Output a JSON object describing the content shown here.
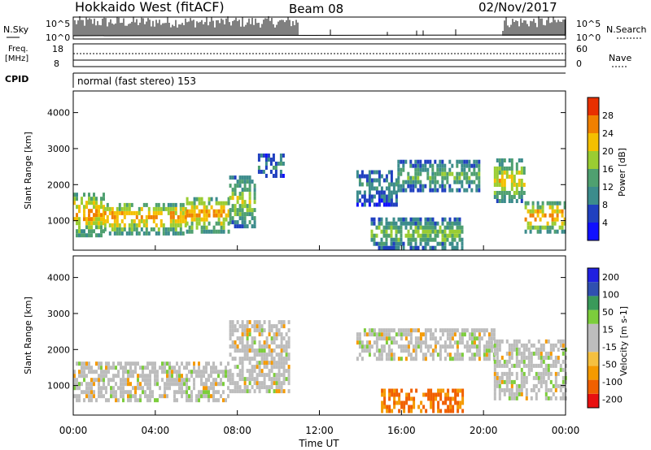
{
  "header": {
    "station": "Hokkaido West (fitACF)",
    "beam": "Beam 08",
    "date": "02/Nov/2017"
  },
  "noise_panel": {
    "left_label": "N.Sky",
    "right_label": "N.Search",
    "left_ticks": [
      "10^5",
      "10^0"
    ],
    "right_ticks": [
      "10^5",
      "10^0"
    ]
  },
  "freq_panel": {
    "left_label_line1": "Freq.",
    "left_label_line2": "[MHz]",
    "right_label": "Nave",
    "left_ticks": [
      "18",
      "8"
    ],
    "right_ticks": [
      "60",
      "0"
    ]
  },
  "cpid_panel": {
    "label": "CPID",
    "text": "normal (fast stereo) 153"
  },
  "chart_data": [
    {
      "type": "heatmap",
      "name": "power",
      "ylabel": "Slant Range [km]",
      "ylim": [
        180,
        4600
      ],
      "yticks": [
        "1000",
        "2000",
        "3000",
        "4000"
      ],
      "xlim": [
        0,
        24
      ],
      "colorbar": {
        "label": "Power [dB]",
        "range": [
          0,
          32
        ],
        "ticks": [
          "4",
          "8",
          "12",
          "16",
          "20",
          "24",
          "28"
        ],
        "colors": [
          "#1010ff",
          "#2040c0",
          "#3c8c8c",
          "#4fa070",
          "#9acd32",
          "#f4c000",
          "#f08000",
          "#e83000"
        ]
      },
      "regions": [
        {
          "t": [
            0.0,
            1.5
          ],
          "r": [
            650,
            1850
          ],
          "level": 0.82
        },
        {
          "t": [
            1.5,
            5.5
          ],
          "r": [
            700,
            1600
          ],
          "level": 0.78
        },
        {
          "t": [
            5.5,
            7.6
          ],
          "r": [
            750,
            1750
          ],
          "level": 0.8
        },
        {
          "t": [
            7.6,
            8.8
          ],
          "r": [
            900,
            2300
          ],
          "level": 0.6
        },
        {
          "t": [
            9.0,
            10.3
          ],
          "r": [
            2300,
            2900
          ],
          "level": 0.35
        },
        {
          "t": [
            13.8,
            15.8
          ],
          "r": [
            1500,
            2500
          ],
          "level": 0.35
        },
        {
          "t": [
            15.8,
            19.8
          ],
          "r": [
            1900,
            2700
          ],
          "level": 0.5
        },
        {
          "t": [
            14.5,
            19.0
          ],
          "r": [
            300,
            1100
          ],
          "level": 0.55
        },
        {
          "t": [
            20.5,
            22.0
          ],
          "r": [
            1600,
            2800
          ],
          "level": 0.7
        },
        {
          "t": [
            22.0,
            24.0
          ],
          "r": [
            750,
            1600
          ],
          "level": 0.82
        }
      ]
    },
    {
      "type": "heatmap",
      "name": "velocity",
      "ylabel": "Slant Range [km]",
      "xlabel": "Time UT",
      "ylim": [
        180,
        4600
      ],
      "yticks": [
        "1000",
        "2000",
        "3000",
        "4000"
      ],
      "xlim": [
        0,
        24
      ],
      "xticks": [
        "00:00",
        "04:00",
        "08:00",
        "12:00",
        "16:00",
        "20:00",
        "00:00"
      ],
      "colorbar": {
        "label": "Velocity [m s-1]",
        "range": [
          -250,
          250
        ],
        "ticks": [
          "200",
          "100",
          "50",
          "15",
          "-15",
          "-50",
          "-100",
          "-200"
        ],
        "colors": [
          "#e81010",
          "#f06000",
          "#f59a00",
          "#f5c040",
          "#bdbdbd",
          "#bdbdbd",
          "#7ccd3c",
          "#3a9a5a",
          "#3050b0",
          "#2020e0"
        ]
      },
      "regions": [
        {
          "t": [
            0.0,
            7.6
          ],
          "r": [
            650,
            1750
          ],
          "v": "gray"
        },
        {
          "t": [
            7.6,
            10.5
          ],
          "r": [
            900,
            2900
          ],
          "v": "gray"
        },
        {
          "t": [
            13.8,
            20.5
          ],
          "r": [
            1800,
            2700
          ],
          "v": "gray"
        },
        {
          "t": [
            15.0,
            19.0
          ],
          "r": [
            350,
            1000
          ],
          "v": "orange"
        },
        {
          "t": [
            20.5,
            24.0
          ],
          "r": [
            700,
            2300
          ],
          "v": "gray"
        }
      ]
    }
  ]
}
